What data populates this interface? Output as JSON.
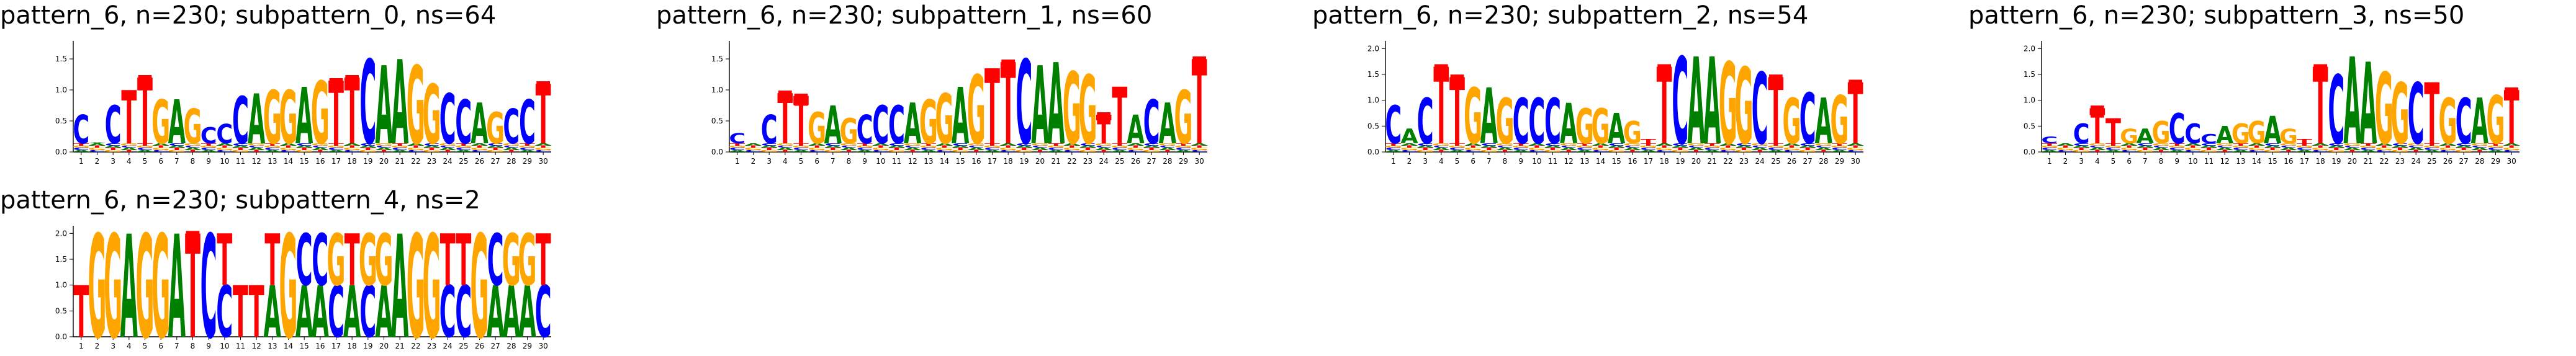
{
  "figure": {
    "background": "#ffffff"
  },
  "colors": {
    "A": "#008000",
    "C": "#0000ff",
    "G": "#ffa500",
    "T": "#ff0000"
  },
  "chart_data": [
    {
      "type": "sequence-logo",
      "title": "pattern_6, n=230; subpattern_0, ns=64",
      "positions": [
        1,
        2,
        3,
        4,
        5,
        6,
        7,
        8,
        9,
        10,
        11,
        12,
        13,
        14,
        15,
        16,
        17,
        18,
        19,
        20,
        21,
        22,
        23,
        24,
        25,
        26,
        27,
        28,
        29,
        30
      ],
      "ylim": [
        0,
        1.75
      ],
      "yticks": [
        0.0,
        0.5,
        1.0,
        1.5
      ],
      "consensus": "CACTTGAGCCCAGGAGTTCAAGGCCAGCCT",
      "heights": [
        0.6,
        0.15,
        0.75,
        1.0,
        1.2,
        0.85,
        0.85,
        0.7,
        0.4,
        0.45,
        0.9,
        0.95,
        1.0,
        1.0,
        1.05,
        1.15,
        1.15,
        1.2,
        1.5,
        1.4,
        1.5,
        1.4,
        1.1,
        0.95,
        0.85,
        0.8,
        0.65,
        0.7,
        0.85,
        1.1
      ],
      "markers": [
        5,
        17,
        18,
        30
      ]
    },
    {
      "type": "sequence-logo",
      "title": "pattern_6, n=230; subpattern_1, ns=60",
      "positions": [
        1,
        2,
        3,
        4,
        5,
        6,
        7,
        8,
        9,
        10,
        11,
        12,
        13,
        14,
        15,
        16,
        17,
        18,
        19,
        20,
        21,
        22,
        23,
        24,
        25,
        26,
        27,
        28,
        29,
        30
      ],
      "ylim": [
        0,
        1.75
      ],
      "yticks": [
        0.0,
        0.5,
        1.0,
        1.5
      ],
      "consensus": "CTCTTGAGCCCAGGAGTTCAAGGTTACAGT",
      "heights": [
        0.3,
        0.12,
        0.6,
        0.95,
        0.9,
        0.65,
        0.75,
        0.55,
        0.6,
        0.75,
        0.75,
        0.8,
        0.85,
        0.95,
        1.05,
        1.25,
        1.35,
        1.45,
        1.5,
        1.4,
        1.45,
        1.3,
        1.25,
        0.6,
        1.05,
        0.6,
        0.85,
        0.8,
        1.0,
        1.5
      ],
      "markers": [
        4,
        5,
        18,
        24,
        30
      ]
    },
    {
      "type": "sequence-logo",
      "title": "pattern_6, n=230; subpattern_2, ns=54",
      "positions": [
        1,
        2,
        3,
        4,
        5,
        6,
        7,
        8,
        9,
        10,
        11,
        12,
        13,
        14,
        15,
        16,
        17,
        18,
        19,
        20,
        21,
        22,
        23,
        24,
        25,
        26,
        27,
        28,
        29,
        30
      ],
      "ylim": [
        0,
        2.1
      ],
      "yticks": [
        0.0,
        0.5,
        1.0,
        1.5,
        2.0
      ],
      "consensus": "CACTTGAGCCCAGGAGTTCAAGGCTGCAGT",
      "heights": [
        0.9,
        0.45,
        1.05,
        1.65,
        1.45,
        1.25,
        1.25,
        1.05,
        1.05,
        1.05,
        1.05,
        0.95,
        0.85,
        0.85,
        0.75,
        0.6,
        0.25,
        1.65,
        1.85,
        1.85,
        1.85,
        1.75,
        1.65,
        1.55,
        1.45,
        1.05,
        1.15,
        1.05,
        1.1,
        1.35
      ],
      "markers": [
        4,
        5,
        18,
        25,
        30
      ]
    },
    {
      "type": "sequence-logo",
      "title": "pattern_6, n=230; subpattern_3, ns=50",
      "positions": [
        1,
        2,
        3,
        4,
        5,
        6,
        7,
        8,
        9,
        10,
        11,
        12,
        13,
        14,
        15,
        16,
        17,
        18,
        19,
        20,
        21,
        22,
        23,
        24,
        25,
        26,
        27,
        28,
        29,
        30
      ],
      "ylim": [
        0,
        2.1
      ],
      "yticks": [
        0.0,
        0.5,
        1.0,
        1.5,
        2.0
      ],
      "consensus": "CACTTGAGCCCAGGAGTTCAAGGCTGCAGT",
      "heights": [
        0.3,
        0.15,
        0.55,
        0.85,
        0.65,
        0.45,
        0.45,
        0.6,
        0.75,
        0.55,
        0.35,
        0.5,
        0.55,
        0.6,
        0.7,
        0.45,
        0.25,
        1.65,
        1.5,
        1.85,
        1.75,
        1.55,
        1.35,
        1.35,
        1.35,
        1.05,
        1.05,
        1.05,
        1.1,
        1.2
      ],
      "markers": [
        4,
        18,
        30
      ]
    },
    {
      "type": "sequence-logo",
      "title": "pattern_6, n=230; subpattern_4, ns=2",
      "positions": [
        1,
        2,
        3,
        4,
        5,
        6,
        7,
        8,
        9,
        10,
        11,
        12,
        13,
        14,
        15,
        16,
        17,
        18,
        19,
        20,
        21,
        22,
        23,
        24,
        25,
        26,
        27,
        28,
        29,
        30
      ],
      "ylim": [
        0,
        2.1
      ],
      "yticks": [
        0.0,
        0.5,
        1.0,
        1.5,
        2.0
      ],
      "consensus": "TGGAGGATCTTTTGCCGTGGAGGTTGCGGT",
      "stacked": [
        null,
        null,
        null,
        null,
        null,
        null,
        null,
        null,
        null,
        [
          [
            "C",
            1.0
          ],
          [
            "T",
            1.0
          ]
        ],
        null,
        null,
        [
          [
            "A",
            1.0
          ],
          [
            "T",
            1.0
          ]
        ],
        null,
        [
          [
            "A",
            1.0
          ],
          [
            "C",
            1.0
          ]
        ],
        [
          [
            "A",
            1.0
          ],
          [
            "C",
            1.0
          ]
        ],
        [
          [
            "C",
            1.0
          ],
          [
            "G",
            1.0
          ]
        ],
        [
          [
            "A",
            1.0
          ],
          [
            "T",
            1.0
          ]
        ],
        [
          [
            "C",
            1.0
          ],
          [
            "G",
            1.0
          ]
        ],
        [
          [
            "A",
            1.0
          ],
          [
            "G",
            1.0
          ]
        ],
        null,
        null,
        null,
        [
          [
            "C",
            1.0
          ],
          [
            "T",
            1.0
          ]
        ],
        [
          [
            "C",
            1.0
          ],
          [
            "T",
            1.0
          ]
        ],
        null,
        [
          [
            "A",
            1.0
          ],
          [
            "C",
            1.0
          ]
        ],
        [
          [
            "A",
            1.0
          ],
          [
            "G",
            1.0
          ]
        ],
        [
          [
            "A",
            1.0
          ],
          [
            "G",
            1.0
          ]
        ],
        [
          [
            "C",
            1.0
          ],
          [
            "T",
            1.0
          ]
        ]
      ],
      "heights": [
        1.0,
        2.0,
        2.0,
        2.0,
        2.0,
        2.0,
        2.0,
        2.0,
        2.0,
        2.0,
        1.0,
        1.0,
        2.0,
        2.0,
        2.0,
        2.0,
        2.0,
        2.0,
        2.0,
        2.0,
        2.0,
        2.0,
        2.0,
        2.0,
        2.0,
        2.0,
        2.0,
        2.0,
        2.0,
        2.0
      ],
      "markers": [
        8
      ]
    }
  ]
}
